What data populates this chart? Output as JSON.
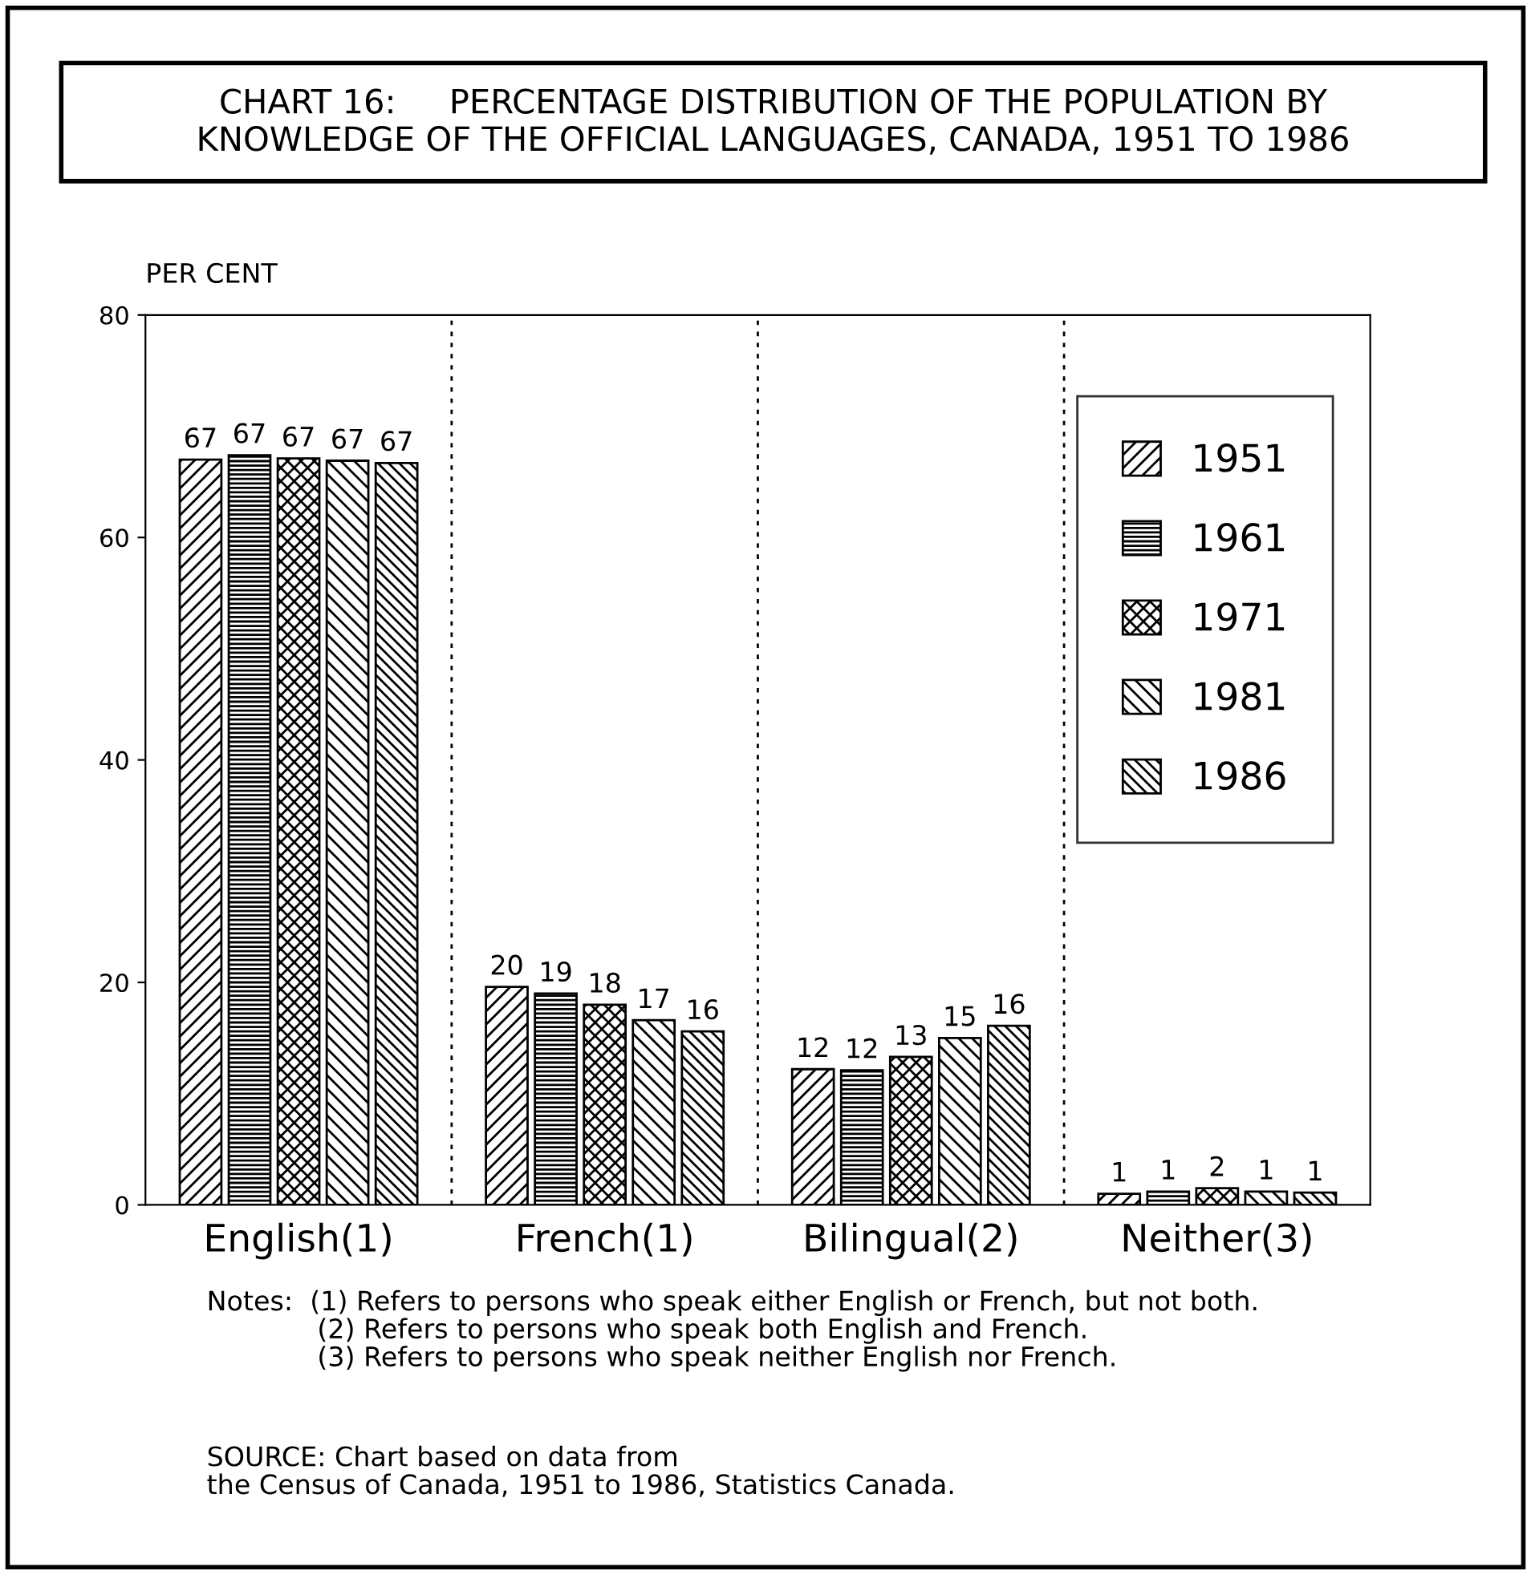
{
  "chart_data": {
    "type": "bar",
    "title": "CHART 16:     PERCENTAGE DISTRIBUTION OF THE POPULATION BY\nKNOWLEDGE OF THE OFFICIAL LANGUAGES, CANADA, 1951 TO 1986",
    "ylabel": "PER CENT",
    "categories": [
      "English(1)",
      "French(1)",
      "Bilingual(2)",
      "Neither(3)"
    ],
    "series": [
      {
        "name": "1951",
        "color": "#000000",
        "values": [
          67.0,
          19.6,
          12.2,
          1.0
        ],
        "value_labels": [
          "67",
          "20",
          "12",
          "1"
        ]
      },
      {
        "name": "1961",
        "color": "#000000",
        "values": [
          67.4,
          19.0,
          12.1,
          1.2
        ],
        "value_labels": [
          "67",
          "19",
          "12",
          "1"
        ]
      },
      {
        "name": "1971",
        "color": "#000000",
        "values": [
          67.1,
          18.0,
          13.3,
          1.5
        ],
        "value_labels": [
          "67",
          "18",
          "13",
          "2"
        ]
      },
      {
        "name": "1981",
        "color": "#000000",
        "values": [
          66.9,
          16.6,
          15.0,
          1.2
        ],
        "value_labels": [
          "67",
          "17",
          "15",
          "1"
        ]
      },
      {
        "name": "1986",
        "color": "#000000",
        "values": [
          66.7,
          15.6,
          16.1,
          1.1
        ],
        "value_labels": [
          "67",
          "16",
          "16",
          "1"
        ]
      }
    ],
    "ylim": [
      0,
      80
    ],
    "yticks": [
      0,
      20,
      40,
      60,
      80
    ],
    "legend": "top right",
    "grid": false,
    "annotations": [
      "Notes:  (1) Refers to persons who speak either English or French, but not both.\n             (2) Refers to persons who speak both English and French.\n             (3) Refers to persons who speak neither English nor French.",
      "SOURCE: Chart based on data from\nthe Census of Canada, 1951 to 1986, Statistics Canada."
    ]
  }
}
